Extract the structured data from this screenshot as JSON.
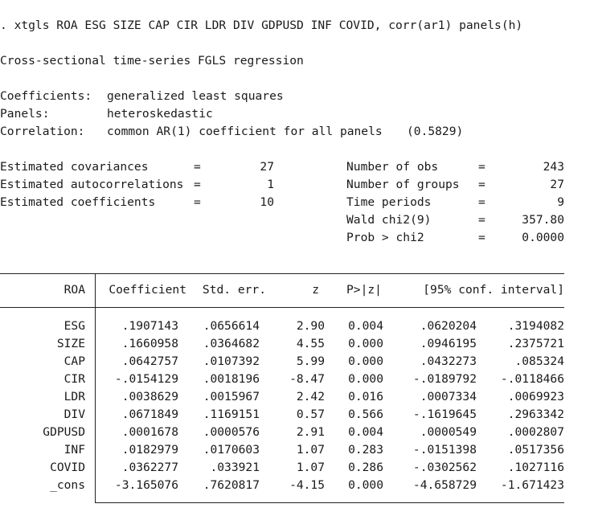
{
  "command": ". xtgls ROA ESG SIZE CAP CIR LDR DIV GDPUSD INF COVID, corr(ar1) panels(h)",
  "title": "Cross-sectional time-series FGLS regression",
  "model_info": {
    "coefficients_label": "Coefficients:",
    "coefficients_value": "generalized least squares",
    "panels_label": "Panels:",
    "panels_value": "heteroskedastic",
    "correlation_label": "Correlation:",
    "correlation_value": "common AR(1) coefficient for all panels",
    "correlation_rho": "(0.5829)"
  },
  "left_stats": [
    {
      "label": "Estimated covariances",
      "eq": "=",
      "value": "27"
    },
    {
      "label": "Estimated autocorrelations",
      "eq": "=",
      "value": "1"
    },
    {
      "label": "Estimated coefficients",
      "eq": "=",
      "value": "10"
    }
  ],
  "right_stats": [
    {
      "label": "Number of obs",
      "eq": "=",
      "value": "243"
    },
    {
      "label": "Number of groups",
      "eq": "=",
      "value": "27"
    },
    {
      "label": "Time periods",
      "eq": "=",
      "value": "9"
    },
    {
      "label": "Wald chi2(9)",
      "eq": "=",
      "value": "357.80"
    },
    {
      "label": "Prob > chi2",
      "eq": "=",
      "value": "0.0000"
    }
  ],
  "table": {
    "depvar": "ROA",
    "headers": [
      "Coefficient",
      "Std. err.",
      "z",
      "P>|z|",
      "[95% conf. interval]"
    ],
    "rows": [
      {
        "var": "ESG",
        "coef": ".1907143",
        "se": ".0656614",
        "z": "2.90",
        "p": "0.004",
        "lo": ".0620204",
        "hi": ".3194082"
      },
      {
        "var": "SIZE",
        "coef": ".1660958",
        "se": ".0364682",
        "z": "4.55",
        "p": "0.000",
        "lo": ".0946195",
        "hi": ".2375721"
      },
      {
        "var": "CAP",
        "coef": ".0642757",
        "se": ".0107392",
        "z": "5.99",
        "p": "0.000",
        "lo": ".0432273",
        "hi": ".085324"
      },
      {
        "var": "CIR",
        "coef": "-.0154129",
        "se": ".0018196",
        "z": "-8.47",
        "p": "0.000",
        "lo": "-.0189792",
        "hi": "-.0118466"
      },
      {
        "var": "LDR",
        "coef": ".0038629",
        "se": ".0015967",
        "z": "2.42",
        "p": "0.016",
        "lo": ".0007334",
        "hi": ".0069923"
      },
      {
        "var": "DIV",
        "coef": ".0671849",
        "se": ".1169151",
        "z": "0.57",
        "p": "0.566",
        "lo": "-.1619645",
        "hi": ".2963342"
      },
      {
        "var": "GDPUSD",
        "coef": ".0001678",
        "se": ".0000576",
        "z": "2.91",
        "p": "0.004",
        "lo": ".0000549",
        "hi": ".0002807"
      },
      {
        "var": "INF",
        "coef": ".0182979",
        "se": ".0170603",
        "z": "1.07",
        "p": "0.283",
        "lo": "-.0151398",
        "hi": ".0517356"
      },
      {
        "var": "COVID",
        "coef": ".0362277",
        "se": ".033921",
        "z": "1.07",
        "p": "0.286",
        "lo": "-.0302562",
        "hi": ".1027116"
      },
      {
        "var": "_cons",
        "coef": "-3.165076",
        "se": ".7620817",
        "z": "-4.15",
        "p": "0.000",
        "lo": "-4.658729",
        "hi": "-1.671423"
      }
    ]
  }
}
